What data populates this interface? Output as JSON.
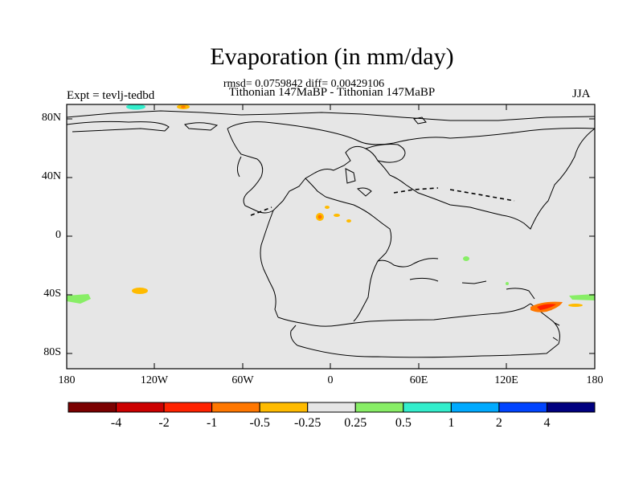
{
  "title": "Evaporation (in mm/day)",
  "stats": "rmsd= 0.0759842 diff= 0.00429106",
  "subtitle": "Tithonian 147MaBP - Tithonian 147MaBP",
  "expt": "Expt = tevlj-tedbd",
  "season": "JJA",
  "y_ticks": [
    "80N",
    "40N",
    "0",
    "40S",
    "80S"
  ],
  "x_ticks": [
    "180",
    "120W",
    "60W",
    "0",
    "60E",
    "120E",
    "180"
  ],
  "colorbar": {
    "colors": [
      "#7b0000",
      "#cc0000",
      "#ff2200",
      "#ff7700",
      "#ffbb00",
      "#e6e6e6",
      "#88ee66",
      "#33eecc",
      "#00aaff",
      "#0044ff",
      "#000080"
    ],
    "labels": [
      "-4",
      "-2",
      "-1",
      "-0.5",
      "-0.25",
      "0.25",
      "0.5",
      "1",
      "2",
      "4"
    ]
  },
  "colors": {
    "land_fill": "#e6e6e6",
    "coast": "#000000"
  }
}
